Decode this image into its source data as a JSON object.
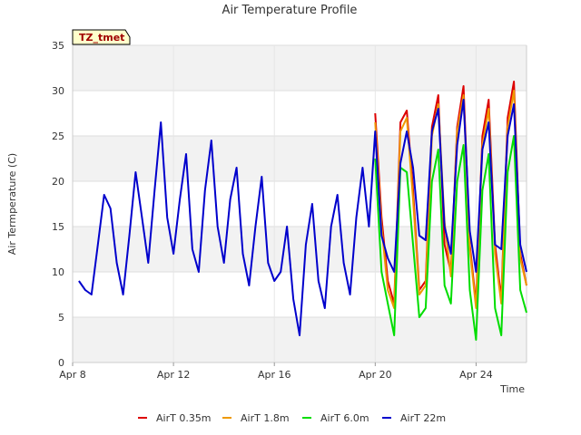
{
  "chart_data": {
    "type": "line",
    "title": "Air Temperature Profile",
    "xlabel": "Time",
    "ylabel": "Air Termperature (C)",
    "badge": "TZ_tmet",
    "x_range": [
      "2024-04-08",
      "2024-04-26"
    ],
    "ylim": [
      0,
      35
    ],
    "y_ticks": [
      0,
      5,
      10,
      15,
      20,
      25,
      30,
      35
    ],
    "x_ticks": [
      {
        "date": "2024-04-08",
        "label": "Apr 8"
      },
      {
        "date": "2024-04-12",
        "label": "Apr 12"
      },
      {
        "date": "2024-04-16",
        "label": "Apr 16"
      },
      {
        "date": "2024-04-20",
        "label": "Apr 20"
      },
      {
        "date": "2024-04-24",
        "label": "Apr 24"
      }
    ],
    "grid": true,
    "legend_position": "bottom",
    "series": [
      {
        "name": "AirT 0.35m",
        "color": "#dd0000",
        "points": [
          [
            "2024-04-20 00:00",
            27.5
          ],
          [
            "2024-04-20 06:00",
            16.0
          ],
          [
            "2024-04-20 12:00",
            9.0
          ],
          [
            "2024-04-20 18:00",
            6.5
          ],
          [
            "2024-04-21 00:00",
            26.5
          ],
          [
            "2024-04-21 06:00",
            27.8
          ],
          [
            "2024-04-21 12:00",
            19.0
          ],
          [
            "2024-04-21 18:00",
            8.0
          ],
          [
            "2024-04-22 00:00",
            9.0
          ],
          [
            "2024-04-22 06:00",
            26.0
          ],
          [
            "2024-04-22 12:00",
            29.5
          ],
          [
            "2024-04-22 18:00",
            13.0
          ],
          [
            "2024-04-23 00:00",
            10.0
          ],
          [
            "2024-04-23 06:00",
            26.0
          ],
          [
            "2024-04-23 12:00",
            30.5
          ],
          [
            "2024-04-23 18:00",
            13.0
          ],
          [
            "2024-04-24 00:00",
            6.5
          ],
          [
            "2024-04-24 06:00",
            25.0
          ],
          [
            "2024-04-24 12:00",
            29.0
          ],
          [
            "2024-04-24 18:00",
            13.0
          ],
          [
            "2024-04-25 00:00",
            7.0
          ],
          [
            "2024-04-25 06:00",
            27.0
          ],
          [
            "2024-04-25 12:00",
            31.0
          ],
          [
            "2024-04-25 18:00",
            12.0
          ],
          [
            "2024-04-26 00:00",
            8.5
          ]
        ]
      },
      {
        "name": "AirT 1.8m",
        "color": "#ee9900",
        "points": [
          [
            "2024-04-20 00:00",
            26.5
          ],
          [
            "2024-04-20 06:00",
            15.0
          ],
          [
            "2024-04-20 12:00",
            8.0
          ],
          [
            "2024-04-20 18:00",
            6.0
          ],
          [
            "2024-04-21 00:00",
            25.5
          ],
          [
            "2024-04-21 06:00",
            27.0
          ],
          [
            "2024-04-21 12:00",
            18.0
          ],
          [
            "2024-04-21 18:00",
            7.5
          ],
          [
            "2024-04-22 00:00",
            8.5
          ],
          [
            "2024-04-22 06:00",
            25.0
          ],
          [
            "2024-04-22 12:00",
            28.5
          ],
          [
            "2024-04-22 18:00",
            15.5
          ],
          [
            "2024-04-23 00:00",
            9.5
          ],
          [
            "2024-04-23 06:00",
            25.5
          ],
          [
            "2024-04-23 12:00",
            29.5
          ],
          [
            "2024-04-23 18:00",
            12.5
          ],
          [
            "2024-04-24 00:00",
            6.0
          ],
          [
            "2024-04-24 06:00",
            24.0
          ],
          [
            "2024-04-24 12:00",
            28.0
          ],
          [
            "2024-04-24 18:00",
            12.0
          ],
          [
            "2024-04-25 00:00",
            6.5
          ],
          [
            "2024-04-25 06:00",
            26.0
          ],
          [
            "2024-04-25 12:00",
            30.0
          ],
          [
            "2024-04-25 18:00",
            11.5
          ],
          [
            "2024-04-26 00:00",
            8.5
          ]
        ]
      },
      {
        "name": "AirT 6.0m",
        "color": "#00dd00",
        "points": [
          [
            "2024-04-20 00:00",
            22.5
          ],
          [
            "2024-04-20 06:00",
            10.0
          ],
          [
            "2024-04-20 12:00",
            6.5
          ],
          [
            "2024-04-20 18:00",
            3.0
          ],
          [
            "2024-04-21 00:00",
            21.5
          ],
          [
            "2024-04-21 06:00",
            21.0
          ],
          [
            "2024-04-21 12:00",
            13.0
          ],
          [
            "2024-04-21 18:00",
            5.0
          ],
          [
            "2024-04-22 00:00",
            6.0
          ],
          [
            "2024-04-22 06:00",
            20.0
          ],
          [
            "2024-04-22 12:00",
            23.5
          ],
          [
            "2024-04-22 18:00",
            8.5
          ],
          [
            "2024-04-23 00:00",
            6.5
          ],
          [
            "2024-04-23 06:00",
            20.0
          ],
          [
            "2024-04-23 12:00",
            24.0
          ],
          [
            "2024-04-23 18:00",
            8.0
          ],
          [
            "2024-04-24 00:00",
            2.5
          ],
          [
            "2024-04-24 06:00",
            19.0
          ],
          [
            "2024-04-24 12:00",
            23.0
          ],
          [
            "2024-04-24 18:00",
            6.0
          ],
          [
            "2024-04-25 00:00",
            3.0
          ],
          [
            "2024-04-25 06:00",
            21.0
          ],
          [
            "2024-04-25 12:00",
            25.0
          ],
          [
            "2024-04-25 18:00",
            8.0
          ],
          [
            "2024-04-26 00:00",
            5.5
          ]
        ]
      },
      {
        "name": "AirT 22m",
        "color": "#0000cc",
        "points": [
          [
            "2024-04-08 06:00",
            9.0
          ],
          [
            "2024-04-08 12:00",
            8.0
          ],
          [
            "2024-04-08 18:00",
            7.5
          ],
          [
            "2024-04-09 00:00",
            13.0
          ],
          [
            "2024-04-09 06:00",
            18.5
          ],
          [
            "2024-04-09 12:00",
            17.0
          ],
          [
            "2024-04-09 18:00",
            11.0
          ],
          [
            "2024-04-10 00:00",
            7.5
          ],
          [
            "2024-04-10 06:00",
            14.0
          ],
          [
            "2024-04-10 12:00",
            21.0
          ],
          [
            "2024-04-10 18:00",
            16.0
          ],
          [
            "2024-04-11 00:00",
            11.0
          ],
          [
            "2024-04-11 06:00",
            19.0
          ],
          [
            "2024-04-11 12:00",
            26.5
          ],
          [
            "2024-04-11 18:00",
            16.0
          ],
          [
            "2024-04-12 00:00",
            12.0
          ],
          [
            "2024-04-12 06:00",
            18.0
          ],
          [
            "2024-04-12 12:00",
            23.0
          ],
          [
            "2024-04-12 18:00",
            12.5
          ],
          [
            "2024-04-13 00:00",
            10.0
          ],
          [
            "2024-04-13 06:00",
            19.0
          ],
          [
            "2024-04-13 12:00",
            24.5
          ],
          [
            "2024-04-13 18:00",
            15.0
          ],
          [
            "2024-04-14 00:00",
            11.0
          ],
          [
            "2024-04-14 06:00",
            18.0
          ],
          [
            "2024-04-14 12:00",
            21.5
          ],
          [
            "2024-04-14 18:00",
            12.0
          ],
          [
            "2024-04-15 00:00",
            8.5
          ],
          [
            "2024-04-15 06:00",
            15.0
          ],
          [
            "2024-04-15 12:00",
            20.5
          ],
          [
            "2024-04-15 18:00",
            11.0
          ],
          [
            "2024-04-16 00:00",
            9.0
          ],
          [
            "2024-04-16 06:00",
            10.0
          ],
          [
            "2024-04-16 12:00",
            15.0
          ],
          [
            "2024-04-16 18:00",
            7.0
          ],
          [
            "2024-04-17 00:00",
            3.0
          ],
          [
            "2024-04-17 06:00",
            13.0
          ],
          [
            "2024-04-17 12:00",
            17.5
          ],
          [
            "2024-04-17 18:00",
            9.0
          ],
          [
            "2024-04-18 00:00",
            6.0
          ],
          [
            "2024-04-18 06:00",
            15.0
          ],
          [
            "2024-04-18 12:00",
            18.5
          ],
          [
            "2024-04-18 18:00",
            11.0
          ],
          [
            "2024-04-19 00:00",
            7.5
          ],
          [
            "2024-04-19 06:00",
            16.0
          ],
          [
            "2024-04-19 12:00",
            21.5
          ],
          [
            "2024-04-19 18:00",
            15.0
          ],
          [
            "2024-04-20 00:00",
            25.5
          ],
          [
            "2024-04-20 06:00",
            14.0
          ],
          [
            "2024-04-20 12:00",
            11.5
          ],
          [
            "2024-04-20 18:00",
            10.0
          ],
          [
            "2024-04-21 00:00",
            22.0
          ],
          [
            "2024-04-21 06:00",
            25.5
          ],
          [
            "2024-04-21 12:00",
            21.5
          ],
          [
            "2024-04-21 18:00",
            14.0
          ],
          [
            "2024-04-22 00:00",
            13.5
          ],
          [
            "2024-04-22 06:00",
            25.5
          ],
          [
            "2024-04-22 12:00",
            28.0
          ],
          [
            "2024-04-22 18:00",
            15.0
          ],
          [
            "2024-04-23 00:00",
            12.0
          ],
          [
            "2024-04-23 06:00",
            24.0
          ],
          [
            "2024-04-23 12:00",
            29.0
          ],
          [
            "2024-04-23 18:00",
            14.5
          ],
          [
            "2024-04-24 00:00",
            10.0
          ],
          [
            "2024-04-24 06:00",
            23.5
          ],
          [
            "2024-04-24 12:00",
            26.5
          ],
          [
            "2024-04-24 18:00",
            13.0
          ],
          [
            "2024-04-25 00:00",
            12.5
          ],
          [
            "2024-04-25 06:00",
            25.0
          ],
          [
            "2024-04-25 12:00",
            28.5
          ],
          [
            "2024-04-25 18:00",
            13.0
          ],
          [
            "2024-04-26 00:00",
            10.0
          ]
        ]
      }
    ]
  }
}
